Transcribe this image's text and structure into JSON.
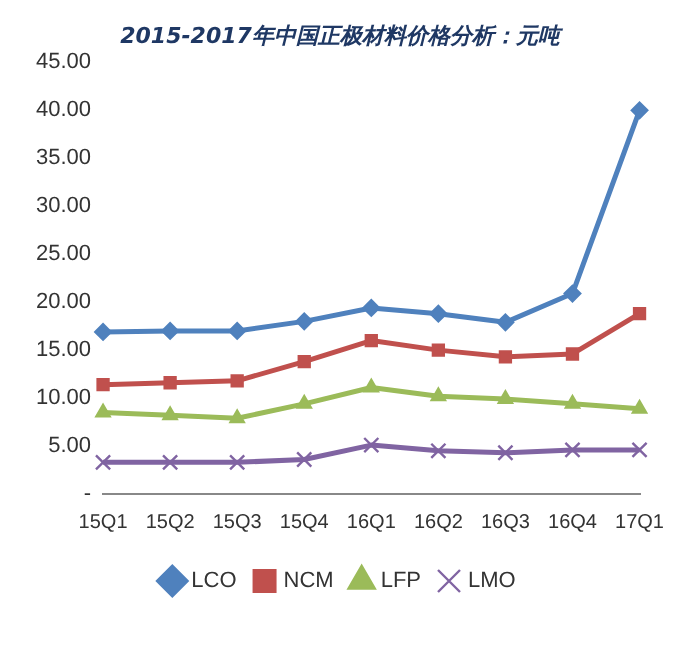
{
  "chart_data": {
    "type": "line",
    "title": "2015-2017年中国正极材料价格分析：元吨",
    "categories": [
      "15Q1",
      "15Q2",
      "15Q3",
      "15Q4",
      "16Q1",
      "16Q2",
      "16Q3",
      "16Q4",
      "17Q1"
    ],
    "series": [
      {
        "name": "LCO",
        "color": "#4f81bd",
        "marker": "diamond",
        "values": [
          16.9,
          17.0,
          17.0,
          18.0,
          19.4,
          18.8,
          17.9,
          20.9,
          40.0
        ]
      },
      {
        "name": "NCM",
        "color": "#c0504d",
        "marker": "square",
        "values": [
          11.4,
          11.6,
          11.8,
          13.8,
          16.0,
          15.0,
          14.3,
          14.6,
          18.8
        ]
      },
      {
        "name": "LFP",
        "color": "#9bbb59",
        "marker": "triangle",
        "values": [
          8.5,
          8.2,
          7.9,
          9.4,
          11.1,
          10.2,
          9.9,
          9.4,
          8.9
        ]
      },
      {
        "name": "LMO",
        "color": "#8064a2",
        "marker": "cross",
        "values": [
          3.3,
          3.3,
          3.3,
          3.6,
          5.1,
          4.5,
          4.3,
          4.6,
          4.6
        ]
      }
    ],
    "ylim": [
      0,
      45
    ],
    "yticks": [
      {
        "value": 0,
        "label": "-"
      },
      {
        "value": 5,
        "label": "5.00"
      },
      {
        "value": 10,
        "label": "10.00"
      },
      {
        "value": 15,
        "label": "15.00"
      },
      {
        "value": 20,
        "label": "20.00"
      },
      {
        "value": 25,
        "label": "25.00"
      },
      {
        "value": 30,
        "label": "30.00"
      },
      {
        "value": 35,
        "label": "35.00"
      },
      {
        "value": 40,
        "label": "40.00"
      },
      {
        "value": 45,
        "label": "45.00"
      }
    ],
    "grid": false,
    "legend": "bottom",
    "line_style": "solid"
  }
}
